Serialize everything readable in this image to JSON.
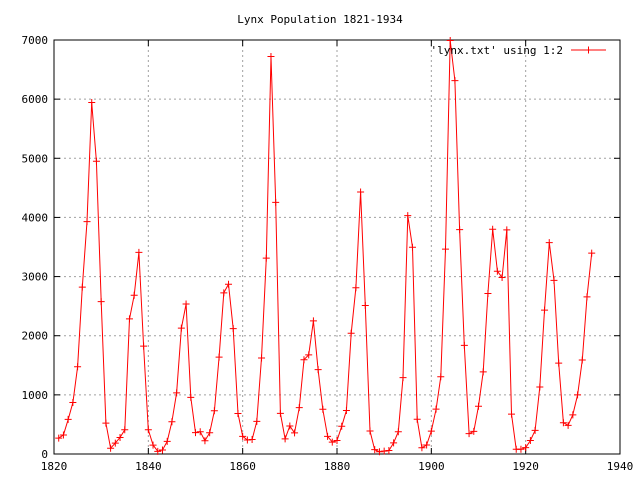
{
  "chart_data": {
    "type": "line",
    "title": "Lynx Population 1821-1934",
    "xlabel": "",
    "ylabel": "",
    "xlim": [
      1820,
      1940
    ],
    "ylim": [
      0,
      7000
    ],
    "xticks": [
      1820,
      1840,
      1860,
      1880,
      1900,
      1920,
      1940
    ],
    "yticks": [
      0,
      1000,
      2000,
      3000,
      4000,
      5000,
      6000,
      7000
    ],
    "grid": true,
    "legend_position": "top-right",
    "series": [
      {
        "name": "'lynx.txt' using 1:2",
        "color": "#ff0000",
        "marker": "plus",
        "x": [
          1821,
          1822,
          1823,
          1824,
          1825,
          1826,
          1827,
          1828,
          1829,
          1830,
          1831,
          1832,
          1833,
          1834,
          1835,
          1836,
          1837,
          1838,
          1839,
          1840,
          1841,
          1842,
          1843,
          1844,
          1845,
          1846,
          1847,
          1848,
          1849,
          1850,
          1851,
          1852,
          1853,
          1854,
          1855,
          1856,
          1857,
          1858,
          1859,
          1860,
          1861,
          1862,
          1863,
          1864,
          1865,
          1866,
          1867,
          1868,
          1869,
          1870,
          1871,
          1872,
          1873,
          1874,
          1875,
          1876,
          1877,
          1878,
          1879,
          1880,
          1881,
          1882,
          1883,
          1884,
          1885,
          1886,
          1887,
          1888,
          1889,
          1890,
          1891,
          1892,
          1893,
          1894,
          1895,
          1896,
          1897,
          1898,
          1899,
          1900,
          1901,
          1902,
          1903,
          1904,
          1905,
          1906,
          1907,
          1908,
          1909,
          1910,
          1911,
          1912,
          1913,
          1914,
          1915,
          1916,
          1917,
          1918,
          1919,
          1920,
          1921,
          1922,
          1923,
          1924,
          1925,
          1926,
          1927,
          1928,
          1929,
          1930,
          1931,
          1932,
          1933,
          1934
        ],
        "y": [
          269,
          321,
          585,
          871,
          1475,
          2821,
          3928,
          5943,
          4950,
          2577,
          523,
          98,
          184,
          279,
          409,
          2285,
          2685,
          3409,
          1824,
          409,
          151,
          45,
          68,
          213,
          546,
          1033,
          2129,
          2536,
          957,
          361,
          377,
          225,
          360,
          731,
          1638,
          2725,
          2871,
          2119,
          684,
          299,
          236,
          245,
          552,
          1623,
          3311,
          6721,
          4254,
          687,
          255,
          473,
          358,
          784,
          1594,
          1676,
          2251,
          1426,
          756,
          299,
          201,
          229,
          469,
          736,
          2042,
          2811,
          4431,
          2511,
          389,
          73,
          39,
          49,
          59,
          188,
          377,
          1292,
          4031,
          3495,
          587,
          105,
          153,
          387,
          758,
          1307,
          3465,
          6991,
          6313,
          3794,
          1836,
          345,
          382,
          808,
          1388,
          2713,
          3800,
          3091,
          2985,
          3790,
          674,
          81,
          80,
          108,
          229,
          399,
          1132,
          2432,
          3574,
          2935,
          1537,
          529,
          485,
          662,
          1000,
          1590,
          2657,
          3396
        ]
      }
    ]
  }
}
